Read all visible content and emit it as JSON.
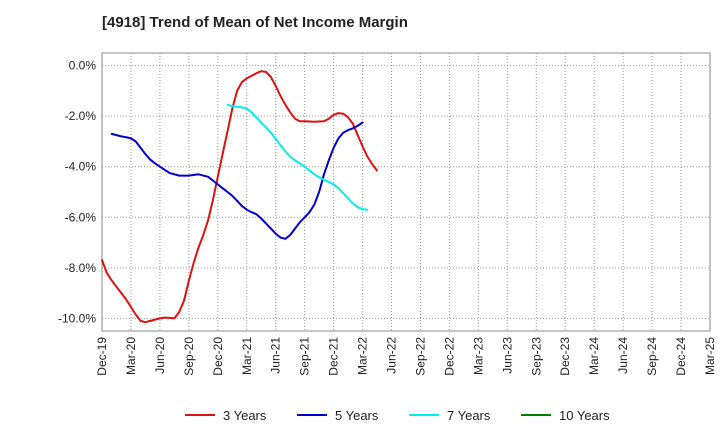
{
  "chart_data": {
    "type": "line",
    "title": "[4918]  Trend of Mean of Net Income Margin",
    "xlabel": "",
    "ylabel": "",
    "ylim": [
      -10.5,
      0.5
    ],
    "yticks": [
      0,
      -2,
      -4,
      -6,
      -8,
      -10
    ],
    "ytick_labels": [
      "0.0%",
      "-2.0%",
      "-4.0%",
      "-6.0%",
      "-8.0%",
      "-10.0%"
    ],
    "xticks": [
      "Dec-19",
      "Mar-20",
      "Jun-20",
      "Sep-20",
      "Dec-20",
      "Mar-21",
      "Jun-21",
      "Sep-21",
      "Dec-21",
      "Mar-22",
      "Jun-22",
      "Sep-22",
      "Dec-22",
      "Mar-23",
      "Jun-23",
      "Sep-23",
      "Dec-23",
      "Mar-24",
      "Jun-24",
      "Sep-24",
      "Dec-24",
      "Mar-25"
    ],
    "grid": true,
    "legend_position": "bottom",
    "series": [
      {
        "name": "3 Years",
        "color": "#dd1111",
        "points": [
          [
            0,
            -7.7
          ],
          [
            0.5,
            -8.2
          ],
          [
            1,
            -8.5
          ],
          [
            1.5,
            -8.75
          ],
          [
            2,
            -9.0
          ],
          [
            2.5,
            -9.25
          ],
          [
            3,
            -9.55
          ],
          [
            3.5,
            -9.85
          ],
          [
            4,
            -10.1
          ],
          [
            4.5,
            -10.15
          ],
          [
            5,
            -10.1
          ],
          [
            5.5,
            -10.05
          ],
          [
            6,
            -10.0
          ],
          [
            6.5,
            -9.97
          ],
          [
            7,
            -9.98
          ],
          [
            7.5,
            -10.0
          ],
          [
            8,
            -9.75
          ],
          [
            8.5,
            -9.3
          ],
          [
            9,
            -8.5
          ],
          [
            9.5,
            -7.8
          ],
          [
            10,
            -7.2
          ],
          [
            10.5,
            -6.7
          ],
          [
            11,
            -6.1
          ],
          [
            11.5,
            -5.3
          ],
          [
            12,
            -4.4
          ],
          [
            12.5,
            -3.5
          ],
          [
            13,
            -2.6
          ],
          [
            13.5,
            -1.7
          ],
          [
            14,
            -1.0
          ],
          [
            14.5,
            -0.65
          ],
          [
            15,
            -0.5
          ],
          [
            15.5,
            -0.4
          ],
          [
            16,
            -0.3
          ],
          [
            16.5,
            -0.22
          ],
          [
            17,
            -0.25
          ],
          [
            17.5,
            -0.45
          ],
          [
            18,
            -0.8
          ],
          [
            18.5,
            -1.2
          ],
          [
            19,
            -1.55
          ],
          [
            19.5,
            -1.85
          ],
          [
            20,
            -2.1
          ],
          [
            20.5,
            -2.2
          ],
          [
            21,
            -2.2
          ],
          [
            22,
            -2.22
          ],
          [
            23,
            -2.2
          ],
          [
            23.5,
            -2.1
          ],
          [
            24,
            -1.95
          ],
          [
            24.5,
            -1.88
          ],
          [
            25,
            -1.9
          ],
          [
            25.5,
            -2.05
          ],
          [
            26,
            -2.3
          ],
          [
            26.5,
            -2.75
          ],
          [
            27,
            -3.2
          ],
          [
            27.5,
            -3.6
          ],
          [
            28,
            -3.9
          ],
          [
            28.5,
            -4.15
          ]
        ]
      },
      {
        "name": "5 Years",
        "color": "#0000cc",
        "points": [
          [
            1,
            -2.7
          ],
          [
            1.5,
            -2.75
          ],
          [
            2,
            -2.8
          ],
          [
            2.5,
            -2.83
          ],
          [
            3,
            -2.88
          ],
          [
            3.5,
            -3.0
          ],
          [
            4,
            -3.25
          ],
          [
            4.5,
            -3.5
          ],
          [
            5,
            -3.72
          ],
          [
            5.5,
            -3.87
          ],
          [
            6,
            -4.0
          ],
          [
            6.5,
            -4.12
          ],
          [
            7,
            -4.25
          ],
          [
            7.5,
            -4.3
          ],
          [
            8,
            -4.35
          ],
          [
            9,
            -4.35
          ],
          [
            10,
            -4.3
          ],
          [
            11,
            -4.4
          ],
          [
            11.5,
            -4.55
          ],
          [
            12,
            -4.7
          ],
          [
            12.5,
            -4.85
          ],
          [
            13,
            -5.0
          ],
          [
            13.5,
            -5.15
          ],
          [
            14,
            -5.35
          ],
          [
            14.5,
            -5.55
          ],
          [
            15,
            -5.7
          ],
          [
            15.5,
            -5.8
          ],
          [
            16,
            -5.88
          ],
          [
            16.5,
            -6.05
          ],
          [
            17,
            -6.25
          ],
          [
            17.5,
            -6.45
          ],
          [
            18,
            -6.65
          ],
          [
            18.5,
            -6.8
          ],
          [
            19,
            -6.85
          ],
          [
            19.5,
            -6.7
          ],
          [
            20,
            -6.45
          ],
          [
            20.5,
            -6.2
          ],
          [
            21,
            -6.0
          ],
          [
            21.5,
            -5.8
          ],
          [
            22,
            -5.5
          ],
          [
            22.5,
            -5.0
          ],
          [
            23,
            -4.3
          ],
          [
            23.5,
            -3.75
          ],
          [
            24,
            -3.25
          ],
          [
            24.5,
            -2.88
          ],
          [
            25,
            -2.65
          ],
          [
            25.5,
            -2.55
          ],
          [
            26,
            -2.48
          ],
          [
            26.5,
            -2.38
          ],
          [
            27,
            -2.25
          ]
        ]
      },
      {
        "name": "7 Years",
        "color": "#00eeee",
        "points": [
          [
            13,
            -1.55
          ],
          [
            13.5,
            -1.6
          ],
          [
            14,
            -1.63
          ],
          [
            14.5,
            -1.65
          ],
          [
            15,
            -1.7
          ],
          [
            15.5,
            -1.85
          ],
          [
            16,
            -2.05
          ],
          [
            16.5,
            -2.25
          ],
          [
            17,
            -2.45
          ],
          [
            17.5,
            -2.65
          ],
          [
            18,
            -2.9
          ],
          [
            18.5,
            -3.15
          ],
          [
            19,
            -3.4
          ],
          [
            19.5,
            -3.6
          ],
          [
            20,
            -3.75
          ],
          [
            20.5,
            -3.87
          ],
          [
            21,
            -4.0
          ],
          [
            21.5,
            -4.15
          ],
          [
            22,
            -4.3
          ],
          [
            22.5,
            -4.42
          ],
          [
            23,
            -4.52
          ],
          [
            23.5,
            -4.6
          ],
          [
            24,
            -4.7
          ],
          [
            24.5,
            -4.85
          ],
          [
            25,
            -5.05
          ],
          [
            25.5,
            -5.25
          ],
          [
            26,
            -5.45
          ],
          [
            26.5,
            -5.6
          ],
          [
            27,
            -5.68
          ],
          [
            27.5,
            -5.7
          ]
        ]
      },
      {
        "name": "10 Years",
        "color": "#008000",
        "points": []
      }
    ]
  }
}
